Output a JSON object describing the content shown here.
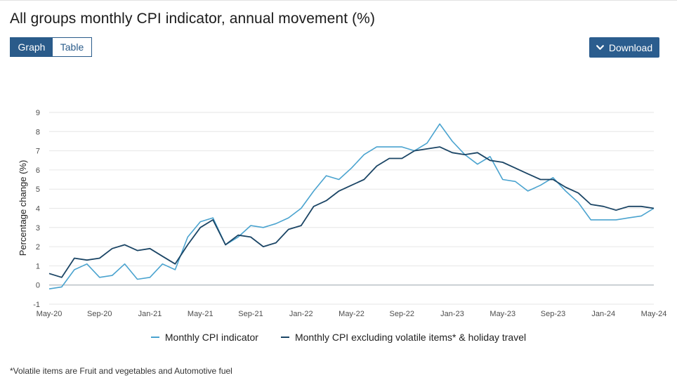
{
  "title": "All groups monthly CPI indicator, annual movement (%)",
  "tabs": [
    {
      "label": "Graph",
      "active": true
    },
    {
      "label": "Table",
      "active": false
    }
  ],
  "download_label": "Download",
  "footnote": "*Volatile items are Fruit and vegetables and Automotive fuel",
  "colors": {
    "accent": "#2a5b8a",
    "series_light": "#4aa3cf",
    "series_dark": "#1b4565",
    "grid": "#e6e6e6",
    "zero_line": "#9aa3ab"
  },
  "chart_data": {
    "type": "line",
    "title": "All groups monthly CPI indicator, annual movement (%)",
    "xlabel": "",
    "ylabel": "Percentage change (%)",
    "ylim": [
      -1,
      9
    ],
    "yticks": [
      -1,
      0,
      1,
      2,
      3,
      4,
      5,
      6,
      7,
      8,
      9
    ],
    "grid": true,
    "legend_position": "bottom-center",
    "x": [
      "May-20",
      "Jun-20",
      "Jul-20",
      "Aug-20",
      "Sep-20",
      "Oct-20",
      "Nov-20",
      "Dec-20",
      "Jan-21",
      "Feb-21",
      "Mar-21",
      "Apr-21",
      "May-21",
      "Jun-21",
      "Jul-21",
      "Aug-21",
      "Sep-21",
      "Oct-21",
      "Nov-21",
      "Dec-21",
      "Jan-22",
      "Feb-22",
      "Mar-22",
      "Apr-22",
      "May-22",
      "Jun-22",
      "Jul-22",
      "Aug-22",
      "Sep-22",
      "Oct-22",
      "Nov-22",
      "Dec-22",
      "Jan-23",
      "Feb-23",
      "Mar-23",
      "Apr-23",
      "May-23",
      "Jun-23",
      "Jul-23",
      "Aug-23",
      "Sep-23",
      "Oct-23",
      "Nov-23",
      "Dec-23",
      "Jan-24",
      "Feb-24",
      "Mar-24",
      "Apr-24",
      "May-24"
    ],
    "xtick_labels": [
      "May-20",
      "Sep-20",
      "Jan-21",
      "May-21",
      "Sep-21",
      "Jan-22",
      "May-22",
      "Sep-22",
      "Jan-23",
      "May-23",
      "Sep-23",
      "Jan-24",
      "May-24"
    ],
    "series": [
      {
        "name": "Monthly CPI indicator",
        "color": "#4aa3cf",
        "values": [
          -0.2,
          -0.1,
          0.8,
          1.1,
          0.4,
          0.5,
          1.1,
          0.3,
          0.4,
          1.1,
          0.8,
          2.5,
          3.3,
          3.5,
          2.1,
          2.5,
          3.1,
          3.0,
          3.2,
          3.5,
          4.0,
          4.9,
          5.7,
          5.5,
          6.1,
          6.8,
          7.2,
          7.2,
          7.2,
          7.0,
          7.4,
          8.4,
          7.5,
          6.8,
          6.3,
          6.7,
          5.5,
          5.4,
          4.9,
          5.2,
          5.6,
          4.9,
          4.3,
          3.4,
          3.4,
          3.4,
          3.5,
          3.6,
          4.0
        ]
      },
      {
        "name": "Monthly CPI excluding volatile items* & holiday travel",
        "color": "#1b4565",
        "values": [
          0.6,
          0.4,
          1.4,
          1.3,
          1.4,
          1.9,
          2.1,
          1.8,
          1.9,
          1.5,
          1.1,
          2.1,
          3.0,
          3.4,
          2.1,
          2.6,
          2.5,
          2.0,
          2.2,
          2.9,
          3.1,
          4.1,
          4.4,
          4.9,
          5.2,
          5.5,
          6.2,
          6.6,
          6.6,
          7.0,
          7.1,
          7.2,
          6.9,
          6.8,
          6.9,
          6.5,
          6.4,
          6.1,
          5.8,
          5.5,
          5.5,
          5.1,
          4.8,
          4.2,
          4.1,
          3.9,
          4.1,
          4.1,
          4.0
        ]
      }
    ]
  }
}
